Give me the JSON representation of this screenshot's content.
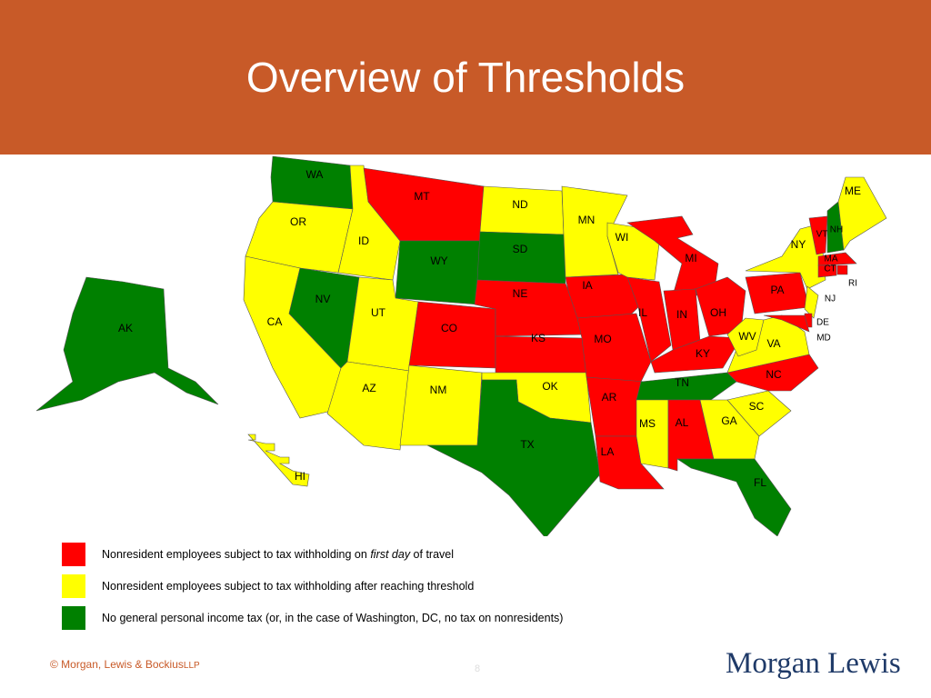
{
  "header": {
    "title": "Overview of Thresholds"
  },
  "legend": {
    "items": [
      {
        "color": "#ff0000",
        "parts": [
          "Nonresident employees subject to tax withholding on ",
          "first day",
          " of travel"
        ]
      },
      {
        "color": "#ffff00",
        "parts": [
          "Nonresident employees subject to tax withholding after reaching threshold"
        ]
      },
      {
        "color": "#008000",
        "parts": [
          "No general personal income tax (or, in the case of Washington, DC, no tax on nonresidents)"
        ]
      }
    ]
  },
  "map": {
    "states": [
      {
        "abbr": "WA",
        "category": 2
      },
      {
        "abbr": "OR",
        "category": 1
      },
      {
        "abbr": "CA",
        "category": 1
      },
      {
        "abbr": "NV",
        "category": 2
      },
      {
        "abbr": "ID",
        "category": 1
      },
      {
        "abbr": "MT",
        "category": 0
      },
      {
        "abbr": "WY",
        "category": 2
      },
      {
        "abbr": "UT",
        "category": 1
      },
      {
        "abbr": "AZ",
        "category": 1
      },
      {
        "abbr": "CO",
        "category": 0
      },
      {
        "abbr": "NM",
        "category": 1
      },
      {
        "abbr": "ND",
        "category": 1
      },
      {
        "abbr": "SD",
        "category": 2
      },
      {
        "abbr": "NE",
        "category": 0
      },
      {
        "abbr": "KS",
        "category": 0
      },
      {
        "abbr": "OK",
        "category": 1
      },
      {
        "abbr": "TX",
        "category": 2
      },
      {
        "abbr": "MN",
        "category": 1
      },
      {
        "abbr": "IA",
        "category": 0
      },
      {
        "abbr": "MO",
        "category": 0
      },
      {
        "abbr": "AR",
        "category": 0
      },
      {
        "abbr": "LA",
        "category": 0
      },
      {
        "abbr": "WI",
        "category": 1
      },
      {
        "abbr": "IL",
        "category": 0
      },
      {
        "abbr": "MI",
        "category": 0
      },
      {
        "abbr": "IN",
        "category": 0
      },
      {
        "abbr": "OH",
        "category": 0
      },
      {
        "abbr": "KY",
        "category": 0
      },
      {
        "abbr": "TN",
        "category": 2
      },
      {
        "abbr": "MS",
        "category": 1
      },
      {
        "abbr": "AL",
        "category": 0
      },
      {
        "abbr": "GA",
        "category": 1
      },
      {
        "abbr": "FL",
        "category": 2
      },
      {
        "abbr": "SC",
        "category": 1
      },
      {
        "abbr": "NC",
        "category": 0
      },
      {
        "abbr": "VA",
        "category": 1
      },
      {
        "abbr": "WV",
        "category": 1
      },
      {
        "abbr": "PA",
        "category": 0
      },
      {
        "abbr": "NY",
        "category": 1
      },
      {
        "abbr": "VT",
        "category": 0
      },
      {
        "abbr": "NH",
        "category": 2
      },
      {
        "abbr": "ME",
        "category": 1
      },
      {
        "abbr": "MA",
        "category": 0
      },
      {
        "abbr": "CT",
        "category": 0
      },
      {
        "abbr": "RI",
        "category": 0
      },
      {
        "abbr": "NJ",
        "category": 1
      },
      {
        "abbr": "DE",
        "category": 0
      },
      {
        "abbr": "MD",
        "category": 0
      },
      {
        "abbr": "AK",
        "category": 2
      },
      {
        "abbr": "HI",
        "category": 1
      }
    ]
  },
  "footer": {
    "copyright": "© Morgan, Lewis & Bockius",
    "copyright_suffix": "LLP",
    "page": "8",
    "logo": "Morgan Lewis"
  }
}
